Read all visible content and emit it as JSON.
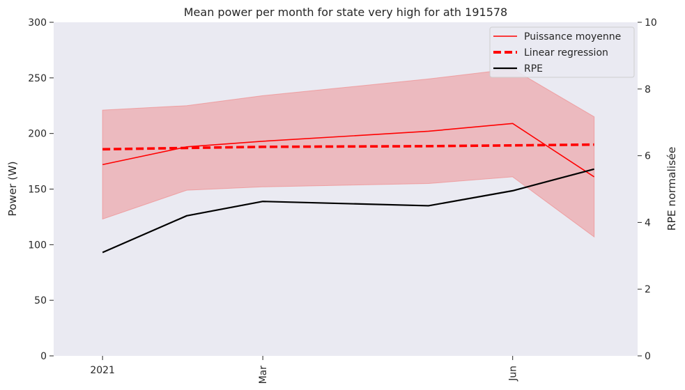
{
  "chart_data": {
    "type": "line",
    "title": "Mean power per month for state very high for ath 191578",
    "ylabel": "Power (W)",
    "y2label": "RPE normalisée",
    "ylim": [
      0,
      300
    ],
    "y2lim": [
      0,
      10
    ],
    "yticks": [
      0,
      50,
      100,
      150,
      200,
      250,
      300
    ],
    "y2ticks": [
      0,
      2,
      4,
      6,
      8,
      10
    ],
    "x_dates": [
      "2021-01-01",
      "2021-02-01",
      "2021-03-01",
      "2021-05-01",
      "2021-06-01",
      "2021-07-01"
    ],
    "xlim": [
      "2020-12-14",
      "2021-07-17"
    ],
    "xticks": [
      {
        "date": "2021-01-01",
        "label": "2021",
        "rotated": false
      },
      {
        "date": "2021-03-01",
        "label": "Mar",
        "rotated": true
      },
      {
        "date": "2021-06-01",
        "label": "Jun",
        "rotated": true
      }
    ],
    "series": [
      {
        "name": "Puissance moyenne",
        "axis": "left",
        "style": "solid",
        "color": "#ff0000",
        "values": [
          172,
          188,
          193,
          202,
          209,
          161
        ]
      },
      {
        "name": "Linear regression",
        "axis": "left",
        "style": "dashed",
        "color": "#ff0000",
        "values": [
          185.8,
          187.0,
          188.0,
          188.6,
          189.3,
          190.0
        ]
      },
      {
        "name": "RPE",
        "axis": "right",
        "style": "solid",
        "color": "#000000",
        "values": [
          3.1,
          4.2,
          4.63,
          4.5,
          4.95,
          5.6
        ]
      }
    ],
    "band": {
      "axis": "left",
      "color": "#f08080",
      "upper": [
        221,
        225,
        234,
        249,
        258,
        215
      ],
      "lower": [
        123,
        149,
        152,
        155,
        161,
        107
      ]
    },
    "legend_position": "top-right",
    "grid": false,
    "background": "#eaeaf2"
  }
}
